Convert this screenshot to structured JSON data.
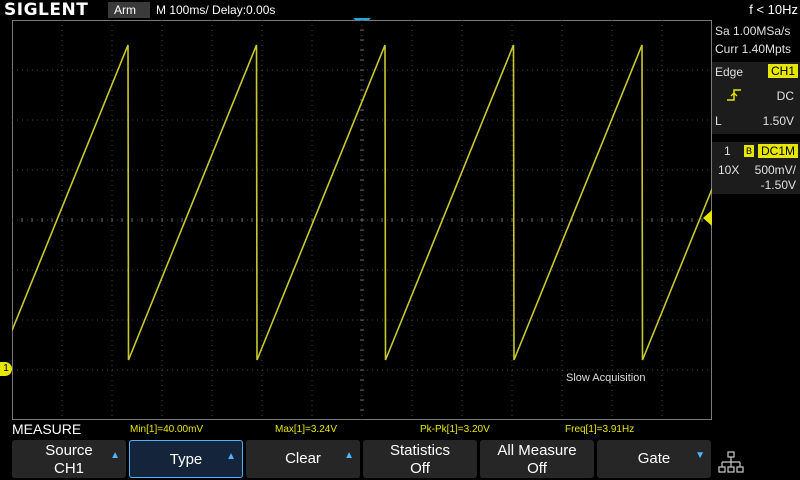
{
  "top": {
    "brand": "SIGLENT",
    "trigger_state": "Arm",
    "timebase": "M 100ms/",
    "delay": "Delay:0.00s",
    "freq_readout": "f < 10Hz"
  },
  "right_panel": {
    "sample_rate": "Sa 1.00MSa/s",
    "memory_depth": "Curr 1.40Mpts",
    "trigger_type": "Edge",
    "trigger_source": "CH1",
    "trigger_coupling": "DC",
    "trigger_level_label": "L",
    "trigger_level": "1.50V",
    "channel_number": "1",
    "bandwidth_flag": "B",
    "channel_coupling": "DC1M",
    "probe": "10X",
    "volts_div": "500mV/",
    "offset": "-1.50V"
  },
  "screen": {
    "status_text": "Slow Acquisition",
    "channel_marker": "1"
  },
  "measure": {
    "title": "MEASURE",
    "values": [
      {
        "label": "Min[1]=40.00mV"
      },
      {
        "label": "Max[1]=3.24V"
      },
      {
        "label": "Pk-Pk[1]=3.20V"
      },
      {
        "label": "Freq[1]=3.91Hz"
      }
    ]
  },
  "softkeys": [
    {
      "line1": "Source",
      "line2": "CH1",
      "arrow": "up"
    },
    {
      "line1": "Type",
      "line2": "",
      "arrow": "up"
    },
    {
      "line1": "Clear",
      "line2": "",
      "arrow": "up"
    },
    {
      "line1": "Statistics",
      "line2": "Off",
      "arrow": ""
    },
    {
      "line1": "All Measure",
      "line2": "Off",
      "arrow": ""
    },
    {
      "line1": "Gate",
      "line2": "",
      "arrow": "down"
    }
  ],
  "waveform": {
    "type": "sawtooth",
    "color": "#c8c832",
    "min_volts": 0.04,
    "max_volts": 3.24
  },
  "colors": {
    "ch1": "#e6e600",
    "accent": "#4fb3ff",
    "marker_cyan": "#1ca8e0"
  }
}
